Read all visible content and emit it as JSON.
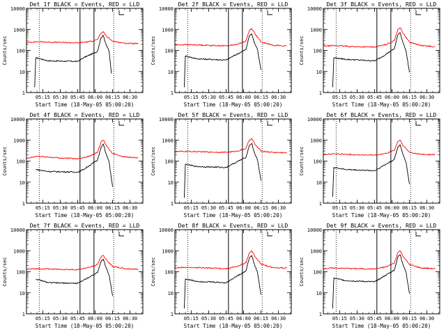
{
  "chart_data": [
    {
      "type": "line",
      "title": "Det 1f BLACK = Events, RED = LLD",
      "xlabel": "Start Time (18-May-05 05:00:20)",
      "ylabel": "Counts/sec",
      "yscale": "log",
      "ylim": [
        1,
        10000
      ],
      "x_range": [
        "05:01",
        "06:41"
      ],
      "xticks": [
        "05:15",
        "05:30",
        "05:45",
        "06:00",
        "06:15",
        "06:30"
      ],
      "yticks": [
        "1",
        "10",
        "100",
        "1000",
        "10000"
      ],
      "series": [
        {
          "color": "#000000",
          "x": [
            "05:08",
            "05:09",
            "05:20",
            "05:45",
            "05:50",
            "06:02",
            "06:05",
            "06:07",
            "06:09",
            "06:12",
            "06:14"
          ],
          "y": [
            1.8,
            45,
            32,
            30,
            45,
            90,
            400,
            520,
            220,
            90,
            8
          ]
        },
        {
          "color": "#ff0000",
          "x": [
            "05:01",
            "05:10",
            "05:30",
            "05:45",
            "05:55",
            "06:02",
            "06:05",
            "06:07",
            "06:10",
            "06:15",
            "06:25",
            "06:37"
          ],
          "y": [
            240,
            260,
            240,
            230,
            260,
            330,
            650,
            780,
            450,
            280,
            220,
            210
          ]
        }
      ],
      "vlines": {
        "dotted": [
          "05:12",
          "06:16"
        ],
        "solid": [
          "05:47",
          "05:59"
        ]
      }
    },
    {
      "type": "line",
      "title": "Det 2f BLACK = Events, RED = LLD",
      "xlabel": "Start Time (18-May-05 05:00:20)",
      "ylabel": "Counts/sec",
      "yscale": "log",
      "ylim": [
        1,
        10000
      ],
      "x_range": [
        "05:01",
        "06:41"
      ],
      "xticks": [
        "05:15",
        "05:30",
        "05:45",
        "06:00",
        "06:15",
        "06:30"
      ],
      "yticks": [
        "1",
        "10",
        "100",
        "1000",
        "10000"
      ],
      "series": [
        {
          "color": "#000000",
          "x": [
            "05:09",
            "05:10",
            "05:20",
            "05:45",
            "05:50",
            "06:02",
            "06:05",
            "06:07",
            "06:09",
            "06:12",
            "06:15"
          ],
          "y": [
            1.8,
            55,
            40,
            35,
            50,
            110,
            500,
            620,
            250,
            110,
            12
          ]
        },
        {
          "color": "#ff0000",
          "x": [
            "05:01",
            "05:10",
            "05:30",
            "05:45",
            "05:55",
            "06:02",
            "06:05",
            "06:07",
            "06:10",
            "06:15",
            "06:25",
            "06:37"
          ],
          "y": [
            180,
            190,
            175,
            165,
            200,
            280,
            900,
            1100,
            600,
            250,
            180,
            160
          ]
        }
      ],
      "vlines": {
        "dotted": [
          "05:12",
          "06:16"
        ],
        "solid": [
          "05:47",
          "05:59"
        ]
      }
    },
    {
      "type": "line",
      "title": "Det 3f BLACK = Events, RED = LLD",
      "xlabel": "Start Time (18-May-05 05:00:20)",
      "ylabel": "Counts/sec",
      "yscale": "log",
      "ylim": [
        1,
        10000
      ],
      "x_range": [
        "05:01",
        "06:41"
      ],
      "xticks": [
        "05:15",
        "05:30",
        "05:45",
        "06:00",
        "06:15",
        "06:30"
      ],
      "yticks": [
        "1",
        "10",
        "100",
        "1000",
        "10000"
      ],
      "series": [
        {
          "color": "#000000",
          "x": [
            "05:09",
            "05:10",
            "05:20",
            "05:45",
            "05:50",
            "06:02",
            "06:05",
            "06:07",
            "06:09",
            "06:12",
            "06:15"
          ],
          "y": [
            1.8,
            45,
            38,
            32,
            45,
            120,
            550,
            700,
            280,
            100,
            9
          ]
        },
        {
          "color": "#ff0000",
          "x": [
            "05:01",
            "05:10",
            "05:30",
            "05:45",
            "05:55",
            "06:02",
            "06:05",
            "06:07",
            "06:10",
            "06:15",
            "06:25",
            "06:37"
          ],
          "y": [
            160,
            170,
            150,
            145,
            190,
            300,
            1000,
            1200,
            600,
            250,
            170,
            150
          ]
        }
      ],
      "vlines": {
        "dotted": [
          "05:12",
          "06:16"
        ],
        "solid": [
          "05:47",
          "05:59"
        ]
      }
    },
    {
      "type": "line",
      "title": "Det 4f BLACK = Events, RED = LLD",
      "xlabel": "Start Time (18-May-05 05:00:20)",
      "ylabel": "Counts/sec",
      "yscale": "log",
      "ylim": [
        1,
        10000
      ],
      "x_range": [
        "05:01",
        "06:41"
      ],
      "xticks": [
        "05:15",
        "05:30",
        "05:45",
        "06:00",
        "06:15",
        "06:30"
      ],
      "yticks": [
        "1",
        "10",
        "100",
        "1000",
        "10000"
      ],
      "series": [
        {
          "color": "#000000",
          "x": [
            "05:09",
            "05:20",
            "05:45",
            "05:50",
            "06:02",
            "06:05",
            "06:07",
            "06:09",
            "06:12",
            "06:15"
          ],
          "y": [
            40,
            32,
            30,
            40,
            110,
            450,
            650,
            250,
            90,
            6
          ]
        },
        {
          "color": "#ff0000",
          "x": [
            "05:01",
            "05:10",
            "05:30",
            "05:45",
            "05:55",
            "06:02",
            "06:05",
            "06:07",
            "06:10",
            "06:15",
            "06:25",
            "06:37"
          ],
          "y": [
            130,
            170,
            140,
            130,
            170,
            260,
            800,
            1000,
            500,
            230,
            160,
            140
          ]
        }
      ],
      "vlines": {
        "dotted": [
          "05:12",
          "06:16"
        ],
        "solid": [
          "05:47",
          "05:59"
        ]
      }
    },
    {
      "type": "line",
      "title": "Det 5f BLACK = Events, RED = LLD",
      "xlabel": "Start Time (18-May-05 05:00:20)",
      "ylabel": "Counts/sec",
      "yscale": "log",
      "ylim": [
        1,
        10000
      ],
      "x_range": [
        "05:01",
        "06:41"
      ],
      "xticks": [
        "05:15",
        "05:30",
        "05:45",
        "06:00",
        "06:15",
        "06:30"
      ],
      "yticks": [
        "1",
        "10",
        "100",
        "1000",
        "10000"
      ],
      "series": [
        {
          "color": "#000000",
          "x": [
            "05:09",
            "05:10",
            "05:20",
            "05:45",
            "05:50",
            "06:02",
            "06:05",
            "06:07",
            "06:09",
            "06:12",
            "06:15"
          ],
          "y": [
            1.8,
            70,
            55,
            50,
            70,
            150,
            550,
            700,
            280,
            110,
            12
          ]
        },
        {
          "color": "#ff0000",
          "x": [
            "05:01",
            "05:10",
            "05:30",
            "05:45",
            "05:55",
            "06:02",
            "06:05",
            "06:07",
            "06:10",
            "06:15",
            "06:25",
            "06:37"
          ],
          "y": [
            280,
            290,
            270,
            260,
            300,
            400,
            1000,
            1200,
            600,
            300,
            260,
            250
          ]
        }
      ],
      "vlines": {
        "dotted": [
          "05:12",
          "06:16"
        ],
        "solid": [
          "05:47",
          "05:59"
        ]
      }
    },
    {
      "type": "line",
      "title": "Det 6f BLACK = Events, RED = LLD",
      "xlabel": "Start Time (18-May-05 05:00:20)",
      "ylabel": "Counts/sec",
      "yscale": "log",
      "ylim": [
        1,
        10000
      ],
      "x_range": [
        "05:01",
        "06:41"
      ],
      "xticks": [
        "05:15",
        "05:30",
        "05:45",
        "06:00",
        "06:15",
        "06:30"
      ],
      "yticks": [
        "1",
        "10",
        "100",
        "1000",
        "10000"
      ],
      "series": [
        {
          "color": "#000000",
          "x": [
            "05:09",
            "05:10",
            "05:20",
            "05:45",
            "05:50",
            "06:02",
            "06:05",
            "06:07",
            "06:09",
            "06:12",
            "06:15"
          ],
          "y": [
            2,
            50,
            40,
            35,
            50,
            120,
            450,
            600,
            250,
            90,
            8
          ]
        },
        {
          "color": "#ff0000",
          "x": [
            "05:01",
            "05:10",
            "05:30",
            "05:45",
            "05:55",
            "06:02",
            "06:05",
            "06:07",
            "06:10",
            "06:15",
            "06:25",
            "06:37"
          ],
          "y": [
            210,
            220,
            200,
            190,
            230,
            330,
            850,
            1000,
            500,
            260,
            210,
            200
          ]
        }
      ],
      "vlines": {
        "dotted": [
          "05:12",
          "06:16"
        ],
        "solid": [
          "05:47",
          "05:59"
        ]
      }
    },
    {
      "type": "line",
      "title": "Det 7f BLACK = Events, RED = LLD",
      "xlabel": "Start Time (18-May-05 05:00:20)",
      "ylabel": "Counts/sec",
      "yscale": "log",
      "ylim": [
        1,
        10000
      ],
      "x_range": [
        "05:01",
        "06:41"
      ],
      "xticks": [
        "05:15",
        "05:30",
        "05:45",
        "06:00",
        "06:15",
        "06:30"
      ],
      "yticks": [
        "1",
        "10",
        "100",
        "1000",
        "10000"
      ],
      "series": [
        {
          "color": "#000000",
          "x": [
            "05:09",
            "05:20",
            "05:45",
            "05:50",
            "06:02",
            "06:05",
            "06:07",
            "06:09",
            "06:12",
            "06:15"
          ],
          "y": [
            45,
            30,
            28,
            40,
            90,
            300,
            400,
            180,
            70,
            7
          ]
        },
        {
          "color": "#ff0000",
          "x": [
            "05:01",
            "05:10",
            "05:30",
            "05:45",
            "05:55",
            "06:02",
            "06:05",
            "06:07",
            "06:10",
            "06:15",
            "06:25",
            "06:37"
          ],
          "y": [
            130,
            140,
            130,
            125,
            160,
            220,
            500,
            600,
            350,
            180,
            140,
            130
          ]
        }
      ],
      "vlines": {
        "dotted": [
          "05:12",
          "06:16"
        ],
        "solid": [
          "05:47",
          "05:59"
        ]
      }
    },
    {
      "type": "line",
      "title": "Det 8f BLACK = Events, RED = LLD",
      "xlabel": "Start Time (18-May-05 05:00:20)",
      "ylabel": "Counts/sec",
      "yscale": "log",
      "ylim": [
        1,
        10000
      ],
      "x_range": [
        "05:01",
        "06:41"
      ],
      "xticks": [
        "05:15",
        "05:30",
        "05:45",
        "06:00",
        "06:15",
        "06:30"
      ],
      "yticks": [
        "1",
        "10",
        "100",
        "1000",
        "10000"
      ],
      "series": [
        {
          "color": "#000000",
          "x": [
            "05:09",
            "05:10",
            "05:20",
            "05:45",
            "05:50",
            "06:02",
            "06:05",
            "06:07",
            "06:09",
            "06:12",
            "06:15"
          ],
          "y": [
            1.8,
            45,
            35,
            30,
            45,
            110,
            450,
            600,
            250,
            90,
            8
          ]
        },
        {
          "color": "#ff0000",
          "x": [
            "05:01",
            "05:10",
            "05:30",
            "05:45",
            "05:55",
            "06:02",
            "06:05",
            "06:07",
            "06:10",
            "06:15",
            "06:25",
            "06:37"
          ],
          "y": [
            150,
            160,
            150,
            140,
            180,
            270,
            800,
            1000,
            500,
            230,
            160,
            150
          ]
        }
      ],
      "vlines": {
        "dotted": [
          "05:12",
          "06:16"
        ],
        "solid": [
          "05:47",
          "05:59"
        ]
      }
    },
    {
      "type": "line",
      "title": "Det 9f BLACK = Events, RED = LLD",
      "xlabel": "Start Time (18-May-05 05:00:20)",
      "ylabel": "Counts/sec",
      "yscale": "log",
      "ylim": [
        1,
        10000
      ],
      "x_range": [
        "05:01",
        "06:41"
      ],
      "xticks": [
        "05:15",
        "05:30",
        "05:45",
        "06:00",
        "06:15",
        "06:30"
      ],
      "yticks": [
        "1",
        "10",
        "100",
        "1000",
        "10000"
      ],
      "series": [
        {
          "color": "#000000",
          "x": [
            "05:09",
            "05:10",
            "05:20",
            "05:45",
            "05:50",
            "06:02",
            "06:05",
            "06:07",
            "06:09",
            "06:12",
            "06:15"
          ],
          "y": [
            1.8,
            50,
            38,
            33,
            48,
            120,
            500,
            650,
            260,
            100,
            9
          ]
        },
        {
          "color": "#ff0000",
          "x": [
            "05:01",
            "05:10",
            "05:30",
            "05:45",
            "05:55",
            "06:02",
            "06:05",
            "06:07",
            "06:10",
            "06:15",
            "06:25",
            "06:37"
          ],
          "y": [
            140,
            150,
            140,
            135,
            170,
            260,
            800,
            1000,
            500,
            220,
            150,
            140
          ]
        }
      ],
      "vlines": {
        "dotted": [
          "05:12",
          "06:16"
        ],
        "solid": [
          "05:47",
          "05:59"
        ]
      }
    }
  ]
}
